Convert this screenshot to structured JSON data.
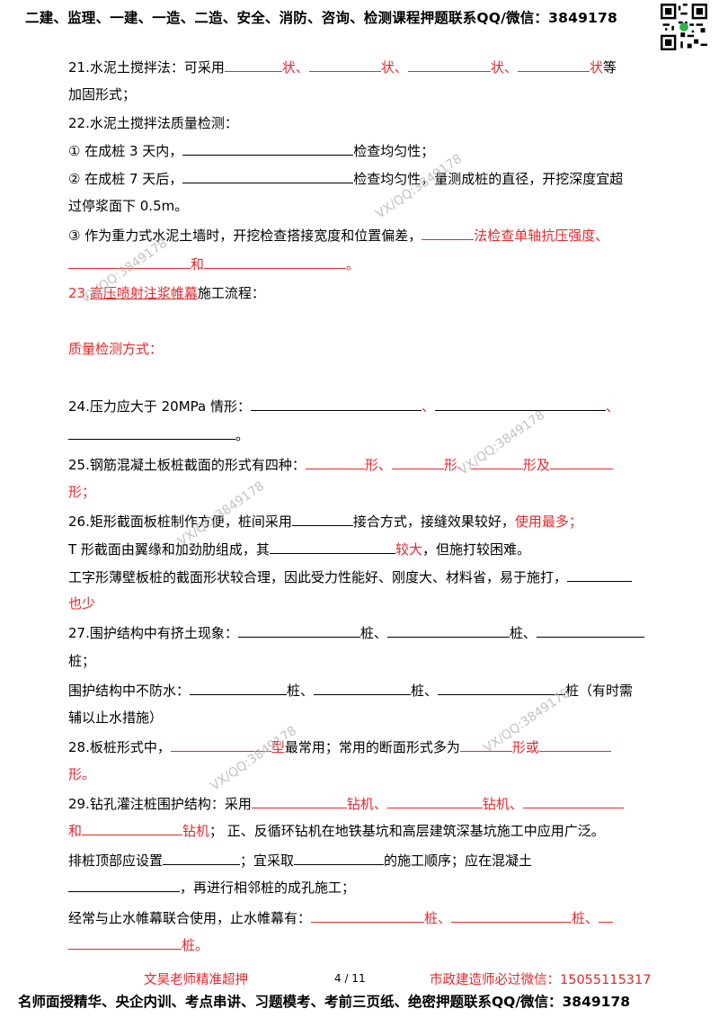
{
  "header": "二建、监理、一建、一造、二造、安全、消防、咨询、检测课程押题联系QQ/微信：3849178",
  "q21": {
    "a": "21.水泥土搅拌法：可采用",
    "s1": "状、",
    "s2": "状、",
    "s3": "状、",
    "s4": "状",
    "tail": "等",
    "line2": "加固形式；"
  },
  "q22": {
    "title": "22.水泥土搅拌法质量检测：",
    "i1a": "① 在成桩 3 天内，",
    "i1b": "检查均匀性；",
    "i2a": "② 在成桩 7 天后，",
    "i2b": "检查均匀性，量测成桩的直径，开挖深度宜超",
    "i2c": "过停浆面下 0.5m。",
    "i3a": "③ 作为重力式水泥土墙时，开挖检查搭接宽度和位置偏差，",
    "i3b": "法检查单轴抗压强度、",
    "i3c": "和",
    "i3d": "。"
  },
  "q23": {
    "num": "23.",
    "red": "高压喷射注浆帷幕",
    "black": "施工流程：",
    "quality": "质量检测方式："
  },
  "q24": {
    "a": "24.压力应大于 20MPa 情形：",
    "sep1": "、",
    "sep2": "、",
    "end": "。"
  },
  "q25": {
    "a": "25.钢筋混凝土板桩截面的形式有四种：",
    "s1": "形、",
    "s2": "形、",
    "s3": "形及",
    "s4": "形；"
  },
  "q26": {
    "a": "26.矩形截面板桩制作方便，桩间采用",
    "b": "接合方式，接缝效果较好，",
    "c": "使用最多；",
    "d": "T 形截面由翼缘和加劲肋组成，其",
    "e": "较大",
    "f": "，但施打较困难。",
    "g": "工字形薄壁板桩的截面形状较合理，因此受力性能好、刚度大、材料省，易于施打，",
    "h": "也少"
  },
  "q27": {
    "a": "27.围护结构中有挤土现象：",
    "s1": "桩、",
    "s2": "桩、",
    "s3": "桩；",
    "b": "围护结构中不防水：",
    "t1": "桩、",
    "t2": "桩、",
    "t3": "桩（有时需",
    "c": "辅以止水措施）"
  },
  "q28": {
    "a": "28.板桩形式中，",
    "b": "型",
    "c": "最常用；常用的断面形式多为",
    "d": "形或",
    "e": "形。"
  },
  "q29": {
    "a": "29.钻孔灌注桩围护结构：采用",
    "s1": "钻机、",
    "s2": "钻机、",
    "b": "和",
    "s3": "钻机",
    "c": "；  正、反循环钻机在地铁基坑和高层建筑深基坑施工中应用广泛。",
    "d": "排桩顶部应设置",
    "e": "；宜采取",
    "f": "的施工顺序；应在混凝土",
    "g": "，再进行相邻桩的成孔施工；",
    "h": "经常与止水帷幕联合使用，止水帷幕有：",
    "t1": "桩、",
    "t2": "桩、",
    "t3": "桩。"
  },
  "footer": {
    "left": "文昊老师精准超押",
    "page": "4 / 11",
    "right": "市政建造师必过微信：15055115317",
    "bottom": "名师面授精华、央企内训、考点串讲、习题模考、考前三页纸、绝密押题联系QQ/微信：3849178"
  },
  "watermark": "VX/QQ:3849178",
  "colors": {
    "accent_red": "#e8262a",
    "watermark_gray": "#b8b8b8"
  }
}
